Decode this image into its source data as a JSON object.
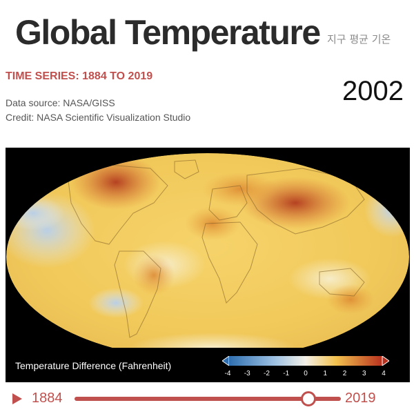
{
  "header": {
    "title": "Global Temperature",
    "subtitle_kr": "지구 평균 기온",
    "series_heading": "TIME SERIES: 1884 TO 2019",
    "source": "Data source: NASA/GISS",
    "credit": "Credit: NASA Scientific Visualization Studio",
    "current_year": "2002"
  },
  "map": {
    "legend_label": "Temperature Difference (Fahrenheit)",
    "scale_ticks": [
      "-4",
      "-3",
      "-2",
      "-1",
      "0",
      "1",
      "2",
      "3",
      "4"
    ],
    "colors": {
      "cold": "#2f6fb0",
      "cool": "#9fc2e3",
      "neutral": "#f3f0e6",
      "warm": "#f2c14e",
      "hot": "#b8311f"
    }
  },
  "timeline": {
    "start_year": "1884",
    "end_year": "2019",
    "progress": 0.877,
    "play_icon": "play-icon"
  }
}
